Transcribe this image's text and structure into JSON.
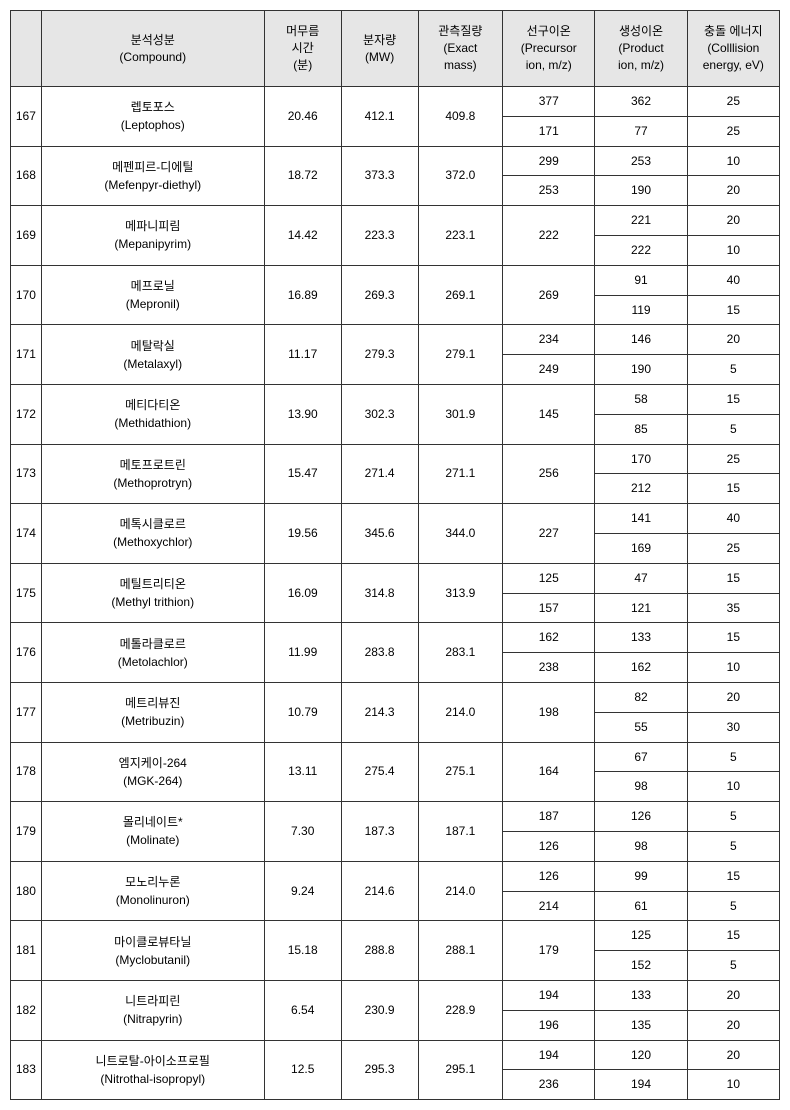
{
  "headers": {
    "num": "",
    "compound": "분석성분\n(Compound)",
    "rt": "머무름\n시간\n(분)",
    "mw": "분자량\n(MW)",
    "mass": "관측질량\n(Exact\nmass)",
    "precursor": "선구이온\n(Precursor\nion, m/z)",
    "product": "생성이온\n(Product\nion, m/z)",
    "energy": "충돌 에너지\n(Colllision\nenergy, eV)"
  },
  "rows": [
    {
      "num": "167",
      "compound_kr": "렙토포스",
      "compound_en": "(Leptophos)",
      "rt": "20.46",
      "mw": "412.1",
      "mass": "409.8",
      "ions": [
        {
          "precursor": "377",
          "product": "362",
          "energy": "25"
        },
        {
          "precursor": "171",
          "product": "77",
          "energy": "25"
        }
      ]
    },
    {
      "num": "168",
      "compound_kr": "메펜피르-디에틸",
      "compound_en": "(Mefenpyr-diethyl)",
      "rt": "18.72",
      "mw": "373.3",
      "mass": "372.0",
      "ions": [
        {
          "precursor": "299",
          "product": "253",
          "energy": "10"
        },
        {
          "precursor": "253",
          "product": "190",
          "energy": "20"
        }
      ]
    },
    {
      "num": "169",
      "compound_kr": "메파니피림",
      "compound_en": "(Mepanipyrim)",
      "rt": "14.42",
      "mw": "223.3",
      "mass": "223.1",
      "precursor_merged": "222",
      "ions": [
        {
          "product": "221",
          "energy": "20"
        },
        {
          "product": "222",
          "energy": "10"
        }
      ]
    },
    {
      "num": "170",
      "compound_kr": "메프로닐",
      "compound_en": "(Mepronil)",
      "rt": "16.89",
      "mw": "269.3",
      "mass": "269.1",
      "precursor_merged": "269",
      "ions": [
        {
          "product": "91",
          "energy": "40"
        },
        {
          "product": "119",
          "energy": "15"
        }
      ]
    },
    {
      "num": "171",
      "compound_kr": "메탈락실",
      "compound_en": "(Metalaxyl)",
      "rt": "11.17",
      "mw": "279.3",
      "mass": "279.1",
      "ions": [
        {
          "precursor": "234",
          "product": "146",
          "energy": "20"
        },
        {
          "precursor": "249",
          "product": "190",
          "energy": "5"
        }
      ]
    },
    {
      "num": "172",
      "compound_kr": "메티다티온",
      "compound_en": "(Methidathion)",
      "rt": "13.90",
      "mw": "302.3",
      "mass": "301.9",
      "precursor_merged": "145",
      "ions": [
        {
          "product": "58",
          "energy": "15"
        },
        {
          "product": "85",
          "energy": "5"
        }
      ]
    },
    {
      "num": "173",
      "compound_kr": "메토프로트린",
      "compound_en": "(Methoprotryn)",
      "rt": "15.47",
      "mw": "271.4",
      "mass": "271.1",
      "precursor_merged": "256",
      "ions": [
        {
          "product": "170",
          "energy": "25"
        },
        {
          "product": "212",
          "energy": "15"
        }
      ]
    },
    {
      "num": "174",
      "compound_kr": "메톡시클로르",
      "compound_en": "(Methoxychlor)",
      "rt": "19.56",
      "mw": "345.6",
      "mass": "344.0",
      "precursor_merged": "227",
      "ions": [
        {
          "product": "141",
          "energy": "40"
        },
        {
          "product": "169",
          "energy": "25"
        }
      ]
    },
    {
      "num": "175",
      "compound_kr": "메틸트리티온",
      "compound_en": "(Methyl trithion)",
      "rt": "16.09",
      "mw": "314.8",
      "mass": "313.9",
      "ions": [
        {
          "precursor": "125",
          "product": "47",
          "energy": "15"
        },
        {
          "precursor": "157",
          "product": "121",
          "energy": "35"
        }
      ]
    },
    {
      "num": "176",
      "compound_kr": "메톨라클로르",
      "compound_en": "(Metolachlor)",
      "rt": "11.99",
      "mw": "283.8",
      "mass": "283.1",
      "ions": [
        {
          "precursor": "162",
          "product": "133",
          "energy": "15"
        },
        {
          "precursor": "238",
          "product": "162",
          "energy": "10"
        }
      ]
    },
    {
      "num": "177",
      "compound_kr": "메트리뷰진",
      "compound_en": "(Metribuzin)",
      "rt": "10.79",
      "mw": "214.3",
      "mass": "214.0",
      "precursor_merged": "198",
      "ions": [
        {
          "product": "82",
          "energy": "20"
        },
        {
          "product": "55",
          "energy": "30"
        }
      ]
    },
    {
      "num": "178",
      "compound_kr": "엠지케이-264",
      "compound_en": "(MGK-264)",
      "rt": "13.11",
      "mw": "275.4",
      "mass": "275.1",
      "precursor_merged": "164",
      "ions": [
        {
          "product": "67",
          "energy": "5"
        },
        {
          "product": "98",
          "energy": "10"
        }
      ]
    },
    {
      "num": "179",
      "compound_kr": "몰리네이트*",
      "compound_en": "(Molinate)",
      "rt": "7.30",
      "mw": "187.3",
      "mass": "187.1",
      "ions": [
        {
          "precursor": "187",
          "product": "126",
          "energy": "5"
        },
        {
          "precursor": "126",
          "product": "98",
          "energy": "5"
        }
      ]
    },
    {
      "num": "180",
      "compound_kr": "모노리누론",
      "compound_en": "(Monolinuron)",
      "rt": "9.24",
      "mw": "214.6",
      "mass": "214.0",
      "ions": [
        {
          "precursor": "126",
          "product": "99",
          "energy": "15"
        },
        {
          "precursor": "214",
          "product": "61",
          "energy": "5"
        }
      ]
    },
    {
      "num": "181",
      "compound_kr": "마이클로뷰타닐",
      "compound_en": "(Myclobutanil)",
      "rt": "15.18",
      "mw": "288.8",
      "mass": "288.1",
      "precursor_merged": "179",
      "ions": [
        {
          "product": "125",
          "energy": "15"
        },
        {
          "product": "152",
          "energy": "5"
        }
      ]
    },
    {
      "num": "182",
      "compound_kr": "니트라피린",
      "compound_en": "(Nitrapyrin)",
      "rt": "6.54",
      "mw": "230.9",
      "mass": "228.9",
      "ions": [
        {
          "precursor": "194",
          "product": "133",
          "energy": "20"
        },
        {
          "precursor": "196",
          "product": "135",
          "energy": "20"
        }
      ]
    },
    {
      "num": "183",
      "compound_kr": "니트로탈-아이소프로필",
      "compound_en": "(Nitrothal-isopropyl)",
      "rt": "12.5",
      "mw": "295.3",
      "mass": "295.1",
      "ions": [
        {
          "precursor": "194",
          "product": "120",
          "energy": "20"
        },
        {
          "precursor": "236",
          "product": "194",
          "energy": "10"
        }
      ]
    }
  ]
}
